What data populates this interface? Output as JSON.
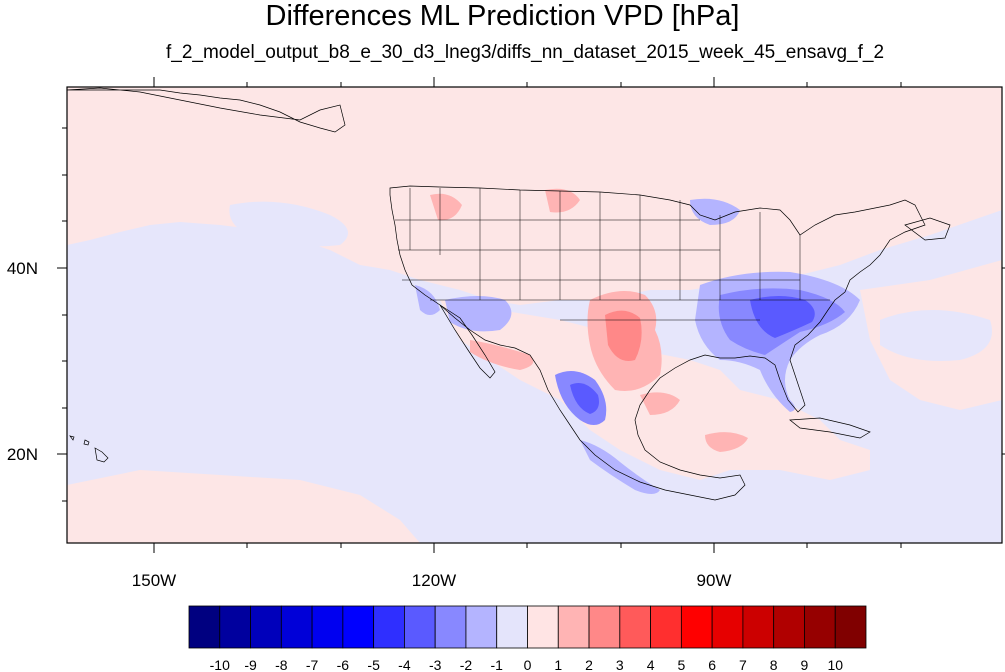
{
  "title": "Differences ML Prediction VPD [hPa]",
  "subtitle": "f_2_model_output_b8_e_30_d3_lneg3/diffs_nn_dataset_2015_week_45_ensavg_f_2",
  "axes": {
    "x_ticks": [
      "150W",
      "120W",
      "90W"
    ],
    "y_ticks": [
      "40N",
      "20N"
    ]
  },
  "colorbar": {
    "labels": [
      "-10",
      "-9",
      "-8",
      "-7",
      "-6",
      "-5",
      "-4",
      "-3",
      "-2",
      "-1",
      "0",
      "1",
      "2",
      "3",
      "4",
      "5",
      "6",
      "7",
      "8",
      "9",
      "10"
    ],
    "colors": [
      "#000080",
      "#00009e",
      "#0000bb",
      "#0000d8",
      "#0000f0",
      "#0000ff",
      "#2f2fff",
      "#5a5aff",
      "#8888ff",
      "#b4b4ff",
      "#e4e4fb",
      "#ffe4e4",
      "#ffb4b4",
      "#ff8888",
      "#ff5a5a",
      "#ff2f2f",
      "#ff0000",
      "#e60000",
      "#cc0000",
      "#b00000",
      "#960000",
      "#800000"
    ]
  },
  "map": {
    "ocean_color": "#e6e6fb",
    "land_color": "#fde6e6"
  }
}
